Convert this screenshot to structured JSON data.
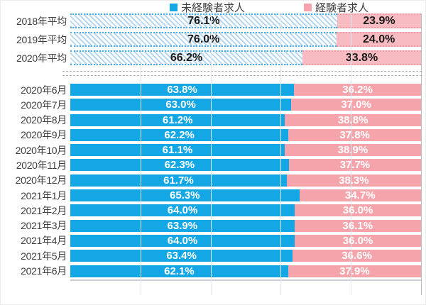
{
  "legend": {
    "items": [
      {
        "label": "未経験者求人",
        "color_key": "blue"
      },
      {
        "label": "経験者求人",
        "color_key": "pink"
      }
    ]
  },
  "colors": {
    "blue": "#14a7e5",
    "pink": "#f5a4ac",
    "pink-light": "#f8bbc1",
    "hatch-stripe": "#b7d7f0",
    "hatch-border": "#4aabdf",
    "pink-border": "#ef9aa5",
    "grid": "#dfe9f2",
    "axis": "#c9cdd1",
    "separator": "#a9adb3",
    "label-text": "#3f3f3f",
    "pct-dark": "#1a1a1a",
    "pct-light": "#ffffff"
  },
  "chart_data": {
    "type": "bar",
    "orientation": "horizontal",
    "stacked": true,
    "unit": "%",
    "xlim": [
      0,
      100
    ],
    "gridline_percents": [
      20,
      40,
      60,
      80
    ],
    "series_names": [
      "未経験者求人",
      "経験者求人"
    ],
    "groups": [
      {
        "name": "yearly-average",
        "style": "hatched",
        "rows": [
          {
            "label": "2018年平均",
            "values": [
              76.1,
              23.9
            ]
          },
          {
            "label": "2019年平均",
            "values": [
              76.0,
              24.0
            ]
          },
          {
            "label": "2020年平均",
            "values": [
              66.2,
              33.8
            ]
          }
        ]
      },
      {
        "name": "monthly",
        "style": "solid",
        "rows": [
          {
            "label": "2020年6月",
            "values": [
              63.8,
              36.2
            ]
          },
          {
            "label": "2020年7月",
            "values": [
              63.0,
              37.0
            ]
          },
          {
            "label": "2020年8月",
            "values": [
              61.2,
              38.8
            ]
          },
          {
            "label": "2020年9月",
            "values": [
              62.2,
              37.8
            ]
          },
          {
            "label": "2020年10月",
            "values": [
              61.1,
              38.9
            ]
          },
          {
            "label": "2020年11月",
            "values": [
              62.3,
              37.7
            ]
          },
          {
            "label": "2020年12月",
            "values": [
              61.7,
              38.3
            ]
          },
          {
            "label": "2021年1月",
            "values": [
              65.3,
              34.7
            ]
          },
          {
            "label": "2021年2月",
            "values": [
              64.0,
              36.0
            ]
          },
          {
            "label": "2021年3月",
            "values": [
              63.9,
              36.1
            ]
          },
          {
            "label": "2021年4月",
            "values": [
              64.0,
              36.0
            ]
          },
          {
            "label": "2021年5月",
            "values": [
              63.4,
              36.6
            ]
          },
          {
            "label": "2021年6月",
            "values": [
              62.1,
              37.9
            ]
          }
        ]
      }
    ]
  }
}
